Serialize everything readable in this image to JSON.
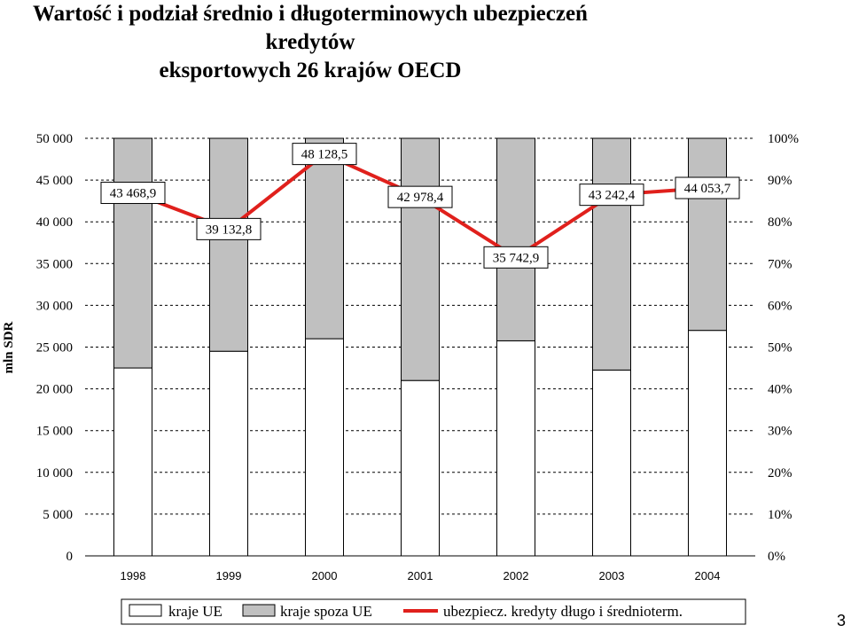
{
  "title_line1": "Wartość i podział średnio i długoterminowych ubezpieczeń kredytów",
  "title_line2": "eksportowych 26 krajów OECD",
  "page_number": "3",
  "colors": {
    "eu": "#ffffff",
    "non_eu": "#c0c0c0",
    "line": "#e0201c",
    "grid": "#000000"
  },
  "chart_data": {
    "type": "bar",
    "stacked_percent": true,
    "categories": [
      "1998",
      "1999",
      "2000",
      "2001",
      "2002",
      "2003",
      "2004"
    ],
    "series": [
      {
        "name": "kraje UE",
        "type": "bar",
        "axis": "right",
        "unit": "%",
        "values": [
          45,
          49,
          52,
          42,
          51.5,
          44.5,
          54
        ]
      },
      {
        "name": "kraje spoza UE",
        "type": "bar",
        "axis": "right",
        "unit": "%",
        "values": [
          55,
          51,
          48,
          58,
          48.5,
          55.5,
          46
        ]
      },
      {
        "name": "ubezpiecz. kredyty długo i średnioterm.",
        "type": "line",
        "axis": "left",
        "values": [
          43468.9,
          39132.8,
          48128.5,
          42978.4,
          35742.9,
          43242.4,
          44053.7
        ]
      }
    ],
    "data_labels": [
      "43 468,9",
      "39 132,8",
      "48 128,5",
      "42 978,4",
      "35 742,9",
      "43 242,4",
      "44 053,7"
    ],
    "ylabel": "mln SDR",
    "ylim": [
      0,
      50000
    ],
    "y_ticks": [
      "0",
      "5 000",
      "10 000",
      "15 000",
      "20 000",
      "25 000",
      "30 000",
      "35 000",
      "40 000",
      "45 000",
      "50 000"
    ],
    "y2lim": [
      0,
      100
    ],
    "y2_ticks": [
      "0%",
      "10%",
      "20%",
      "30%",
      "40%",
      "50%",
      "60%",
      "70%",
      "80%",
      "90%",
      "100%"
    ],
    "grid": "dashed horizontal",
    "legend": {
      "position": "bottom",
      "entries": [
        "kraje UE",
        "kraje spoza UE",
        "ubezpiecz. kredyty długo i średnioterm."
      ]
    }
  }
}
